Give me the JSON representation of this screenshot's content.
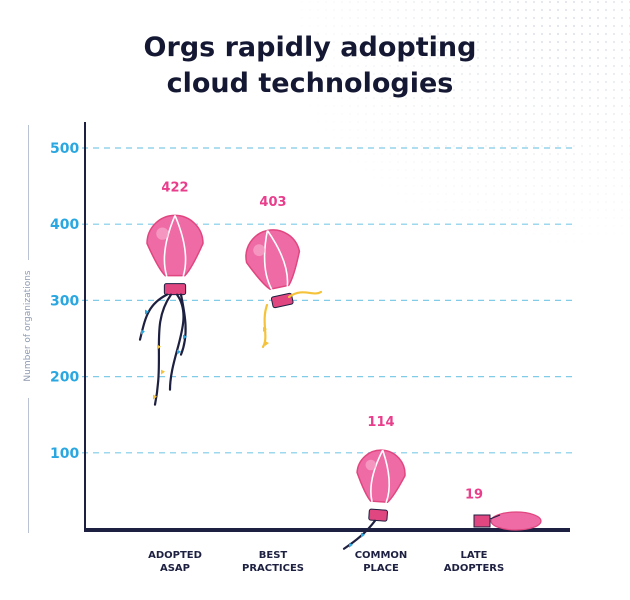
{
  "chart_data": {
    "type": "bar",
    "title_lines": [
      "Orgs rapidly adopting",
      "cloud technologies"
    ],
    "ylabel": "Number of organizations",
    "xlabel": "",
    "ylim": [
      0,
      500
    ],
    "yticks": [
      100,
      200,
      300,
      400,
      500
    ],
    "grid": true,
    "categories": [
      [
        "ADOPTED",
        "ASAP"
      ],
      [
        "BEST",
        "PRACTICES"
      ],
      [
        "COMMON",
        "PLACE"
      ],
      [
        "LATE",
        "ADOPTERS"
      ]
    ],
    "values": [
      422,
      403,
      114,
      19
    ],
    "colors": {
      "balloon": "#ef6ba5",
      "balloon_dark": "#e0467f",
      "label": "#e83e8c",
      "tick": "#2aa7e0",
      "grid": "#7fcbe8",
      "axis": "#1d2040",
      "rope_dark": "#1d2040",
      "rope_yellow": "#f5c33b",
      "rope_blue": "#2aa7e0"
    }
  }
}
